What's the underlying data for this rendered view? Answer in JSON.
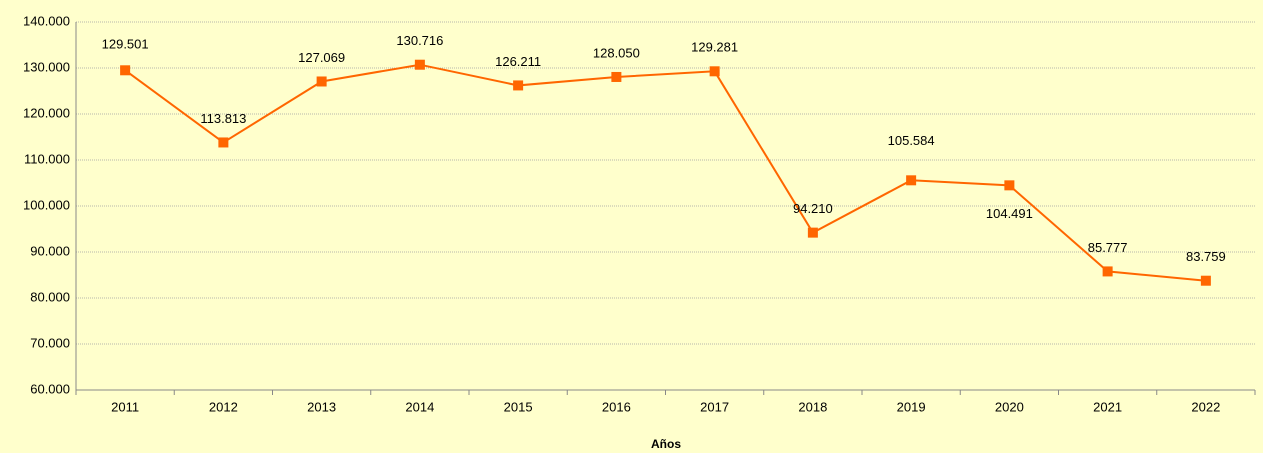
{
  "chart_data": {
    "type": "line",
    "x_label": "Años",
    "categories": [
      "2011",
      "2012",
      "2013",
      "2014",
      "2015",
      "2016",
      "2017",
      "2018",
      "2019",
      "2020",
      "2021",
      "2022"
    ],
    "series": [
      {
        "color": "#ff6600",
        "values": [
          129501,
          113813,
          127069,
          130716,
          126211,
          128050,
          129281,
          94210,
          105584,
          104491,
          85777,
          83759
        ],
        "value_labels": [
          "129.501",
          "113.813",
          "127.069",
          "130.716",
          "126.211",
          "128.050",
          "129.281",
          "94.210",
          "105.584",
          "104.491",
          "85.777",
          "83.759"
        ]
      }
    ],
    "ylim": [
      60000,
      140000
    ],
    "yticks": [
      {
        "value": 60000,
        "label": "60.000"
      },
      {
        "value": 70000,
        "label": "70.000"
      },
      {
        "value": 80000,
        "label": "80.000"
      },
      {
        "value": 90000,
        "label": "90.000"
      },
      {
        "value": 100000,
        "label": "100.000"
      },
      {
        "value": 110000,
        "label": "110.000"
      },
      {
        "value": 120000,
        "label": "120.000"
      },
      {
        "value": 130000,
        "label": "130.000"
      },
      {
        "value": 140000,
        "label": "140.000"
      }
    ],
    "grid": true
  }
}
